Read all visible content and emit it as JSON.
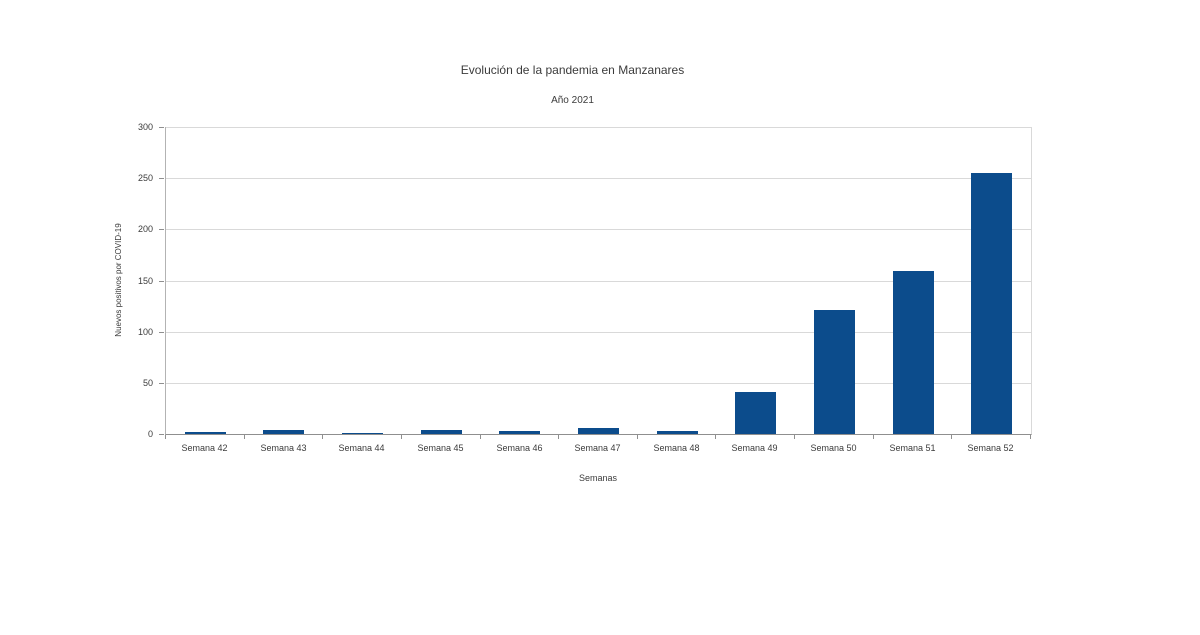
{
  "chart_data": {
    "type": "bar",
    "title": "Evolución de la pandemia en Manzanares",
    "subtitle": "Año 2021",
    "xlabel": "Semanas",
    "ylabel": "Nuevos positivos por COVID-19",
    "categories": [
      "Semana 42",
      "Semana 43",
      "Semana 44",
      "Semana 45",
      "Semana 46",
      "Semana 47",
      "Semana 48",
      "Semana 49",
      "Semana 50",
      "Semana 51",
      "Semana 52"
    ],
    "values": [
      2,
      4,
      1,
      4,
      3,
      6,
      3,
      41,
      121,
      159,
      255
    ],
    "ylim": [
      0,
      300
    ],
    "ytick_step": 50,
    "grid": "horizontal",
    "legend": "none"
  },
  "colors": {
    "bar": "#0c4c8c",
    "grid": "#d9d9d9",
    "axis": "#8f8f8f",
    "text": "#3b3b3b",
    "background": "#ffffff"
  }
}
